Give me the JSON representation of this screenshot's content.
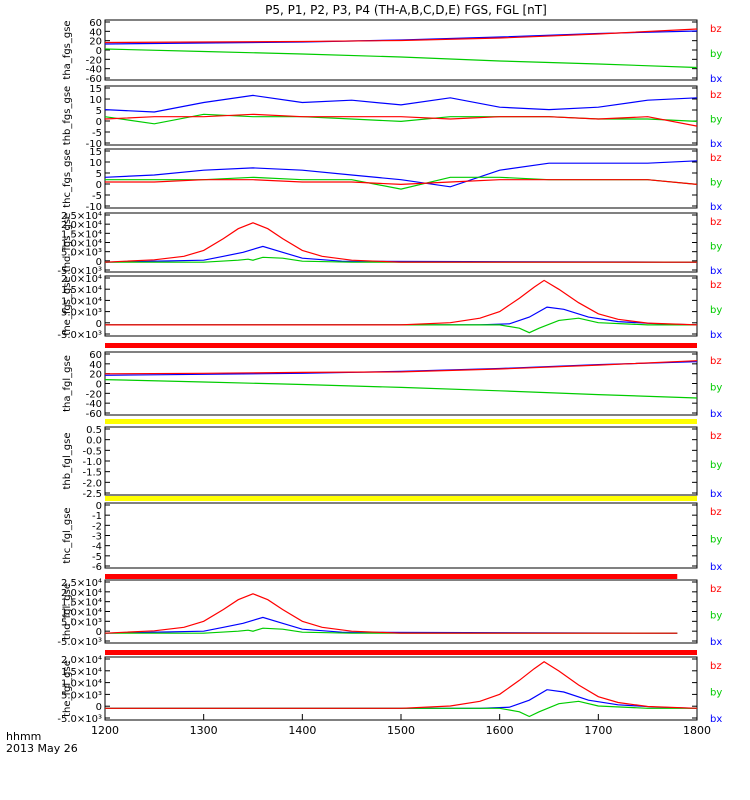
{
  "page": {
    "title": "P5, P1, P2, P3, P4 (TH-A,B,C,D,E) FGS, FGL [nT]",
    "time_label": "hhmm",
    "date_label": "2013 May 26"
  },
  "chart_data": {
    "type": "line",
    "title": "P5, P1, P2, P3, P4 (TH-A,B,C,D,E) FGS, FGL [nT]",
    "xlabel": "hhmm",
    "x_ticks": [
      "1200",
      "1300",
      "1400",
      "1500",
      "1600",
      "1700",
      "1800"
    ],
    "xlim": [
      1200,
      1800
    ],
    "colors": {
      "bx": "#0000ff",
      "by": "#00cc00",
      "bz": "#ff0000",
      "bar_red": "#ff0000",
      "bar_yellow": "#ffff00",
      "bar_black": "#000000"
    },
    "panels": [
      {
        "ylabel": "tha_fgs_gse",
        "yticks": [
          "60",
          "40",
          "20",
          "0",
          "-20",
          "-40",
          "-60"
        ],
        "ylim": [
          -60,
          60
        ],
        "series": [
          {
            "name": "bz",
            "x": [
              1200,
              1300,
              1400,
              1500,
              1600,
              1700,
              1800
            ],
            "values": [
              15,
              16,
              17,
              19,
              24,
              32,
              42
            ]
          },
          {
            "name": "by",
            "x": [
              1200,
              1300,
              1400,
              1500,
              1600,
              1700,
              1800
            ],
            "values": [
              2,
              -3,
              -8,
              -14,
              -22,
              -28,
              -35
            ]
          },
          {
            "name": "bx",
            "x": [
              1200,
              1300,
              1400,
              1500,
              1600,
              1700,
              1800
            ],
            "values": [
              12,
              14,
              16,
              20,
              26,
              33,
              38
            ]
          }
        ]
      },
      {
        "ylabel": "thb_fgs_gse",
        "yticks": [
          "15",
          "10",
          "5",
          "0",
          "-5",
          "-10"
        ],
        "ylim": [
          -10,
          15
        ],
        "series": [
          {
            "name": "bz",
            "x": [
              1200,
              1250,
              1300,
              1350,
              1400,
              1450,
              1500,
              1550,
              1600,
              1650,
              1700,
              1750,
              1800
            ],
            "values": [
              1,
              2,
              2,
              3,
              2,
              2,
              2,
              1,
              2,
              2,
              1,
              2,
              -2
            ]
          },
          {
            "name": "by",
            "x": [
              1200,
              1250,
              1300,
              1350,
              1400,
              1450,
              1500,
              1550,
              1600,
              1650,
              1700,
              1750,
              1800
            ],
            "values": [
              2,
              -1,
              3,
              2,
              2,
              1,
              0,
              2,
              2,
              2,
              1,
              1,
              0
            ]
          },
          {
            "name": "bx",
            "x": [
              1200,
              1250,
              1300,
              1350,
              1400,
              1450,
              1500,
              1550,
              1600,
              1650,
              1700,
              1750,
              1800
            ],
            "values": [
              5,
              4,
              8,
              11,
              8,
              9,
              7,
              10,
              6,
              5,
              6,
              9,
              10
            ]
          }
        ]
      },
      {
        "ylabel": "thc_fgs_gse",
        "yticks": [
          "15",
          "10",
          "5",
          "0",
          "-5",
          "-10"
        ],
        "ylim": [
          -10,
          15
        ],
        "series": [
          {
            "name": "bz",
            "x": [
              1200,
              1250,
              1300,
              1350,
              1400,
              1450,
              1500,
              1550,
              1600,
              1650,
              1700,
              1750,
              1800
            ],
            "values": [
              1,
              1,
              2,
              2,
              1,
              1,
              0,
              1,
              2,
              2,
              2,
              2,
              0
            ]
          },
          {
            "name": "by",
            "x": [
              1200,
              1250,
              1300,
              1350,
              1400,
              1450,
              1500,
              1550,
              1600,
              1650,
              1700,
              1750,
              1800
            ],
            "values": [
              2,
              2,
              2,
              3,
              2,
              2,
              -2,
              3,
              3,
              2,
              2,
              2,
              0
            ]
          },
          {
            "name": "bx",
            "x": [
              1200,
              1250,
              1300,
              1350,
              1400,
              1450,
              1500,
              1550,
              1600,
              1650,
              1700,
              1750,
              1800
            ],
            "values": [
              3,
              4,
              6,
              7,
              6,
              4,
              2,
              -1,
              6,
              9,
              9,
              9,
              10
            ]
          }
        ]
      },
      {
        "ylabel": "thd_fgs_gse",
        "yticks": [
          "2.5×10⁴",
          "2.0×10⁴",
          "1.5×10⁴",
          "1.0×10⁴",
          "5.0×10³",
          "0",
          "-5.0×10³"
        ],
        "ylim": [
          -5000,
          25000
        ],
        "series": [
          {
            "name": "bz",
            "x": [
              1200,
              1250,
              1280,
              1300,
              1320,
              1335,
              1350,
              1365,
              1380,
              1400,
              1420,
              1450,
              1500,
              1800
            ],
            "values": [
              0,
              1200,
              3000,
              6000,
              12000,
              17000,
              20000,
              17000,
              12000,
              6000,
              3000,
              1000,
              0,
              0
            ]
          },
          {
            "name": "by",
            "x": [
              1200,
              1300,
              1335,
              1345,
              1350,
              1360,
              1380,
              1400,
              1450,
              1800
            ],
            "values": [
              0,
              0,
              1000,
              1500,
              1000,
              2500,
              2000,
              500,
              0,
              0
            ]
          },
          {
            "name": "bx",
            "x": [
              1200,
              1300,
              1320,
              1340,
              1360,
              1380,
              1400,
              1440,
              1800
            ],
            "values": [
              0,
              1000,
              3000,
              5000,
              8000,
              5000,
              2000,
              500,
              0
            ]
          }
        ]
      },
      {
        "ylabel": "the_fgs_gse",
        "yticks": [
          "2.0×10⁴",
          "1.5×10⁴",
          "1.0×10⁴",
          "5.0×10³",
          "0",
          "-5.0×10³"
        ],
        "ylim": [
          -5000,
          22000
        ],
        "series": [
          {
            "name": "bz",
            "x": [
              1200,
              1500,
              1550,
              1580,
              1600,
              1620,
              1635,
              1645,
              1660,
              1680,
              1700,
              1720,
              1750,
              1800
            ],
            "values": [
              0,
              0,
              1000,
              3000,
              6000,
              12000,
              17000,
              20000,
              16000,
              10000,
              5000,
              2500,
              800,
              0
            ]
          },
          {
            "name": "by",
            "x": [
              1200,
              1500,
              1600,
              1620,
              1630,
              1640,
              1660,
              1680,
              1700,
              1750,
              1800
            ],
            "values": [
              0,
              0,
              0,
              -1500,
              -3500,
              -1500,
              2000,
              3000,
              1000,
              0,
              0
            ]
          },
          {
            "name": "bx",
            "x": [
              1200,
              1500,
              1580,
              1610,
              1630,
              1648,
              1665,
              1690,
              1720,
              1760,
              1800
            ],
            "values": [
              0,
              0,
              0,
              500,
              3500,
              8000,
              7000,
              3500,
              1500,
              500,
              0
            ]
          }
        ]
      },
      {
        "ylabel": "tha_fgl_gse",
        "yticks": [
          "60",
          "40",
          "20",
          "0",
          "-20",
          "-40",
          "-60"
        ],
        "ylim": [
          -70,
          60
        ],
        "series": [
          {
            "name": "bz",
            "x": [
              1200,
              1300,
              1400,
              1500,
              1600,
              1700,
              1800
            ],
            "values": [
              15,
              16,
              18,
              19,
              25,
              33,
              42
            ]
          },
          {
            "name": "by",
            "x": [
              1200,
              1300,
              1400,
              1500,
              1600,
              1700,
              1800
            ],
            "values": [
              3,
              -2,
              -7,
              -13,
              -20,
              -28,
              -35
            ]
          },
          {
            "name": "bx",
            "x": [
              1200,
              1300,
              1400,
              1500,
              1600,
              1700,
              1800
            ],
            "values": [
              12,
              14,
              16,
              20,
              26,
              34,
              40
            ]
          }
        ]
      },
      {
        "ylabel": "thb_fgl_gse",
        "yticks": [
          "0.5",
          "0.0",
          "-0.5",
          "-1.0",
          "-1.5",
          "-2.0",
          "-2.5"
        ],
        "ylim": [
          -3,
          0.7
        ],
        "series": []
      },
      {
        "ylabel": "thc_fgl_gse",
        "yticks": [
          "0",
          "-1",
          "-2",
          "-3",
          "-4",
          "-5",
          "-6"
        ],
        "ylim": [
          -6.3,
          0.3
        ],
        "series": []
      },
      {
        "ylabel": "thd_fgl_gse",
        "yticks": [
          "2.5×10⁴",
          "2.0×10⁴",
          "1.5×10⁴",
          "1.0×10⁴",
          "5.0×10³",
          "0",
          "-5.0×10³"
        ],
        "ylim": [
          -5000,
          27000
        ],
        "series": [
          {
            "name": "bz",
            "x": [
              1200,
              1250,
              1280,
              1300,
              1320,
              1335,
              1350,
              1365,
              1380,
              1400,
              1420,
              1450,
              1500,
              1780
            ],
            "values": [
              0,
              1200,
              3000,
              6000,
              12000,
              17000,
              20000,
              17000,
              12000,
              6000,
              3000,
              1000,
              0,
              0
            ]
          },
          {
            "name": "by",
            "x": [
              1200,
              1300,
              1335,
              1345,
              1350,
              1360,
              1380,
              1400,
              1450,
              1780
            ],
            "values": [
              0,
              0,
              1000,
              1500,
              1000,
              2500,
              2000,
              500,
              0,
              0
            ]
          },
          {
            "name": "bx",
            "x": [
              1200,
              1300,
              1320,
              1340,
              1360,
              1380,
              1400,
              1440,
              1780
            ],
            "values": [
              0,
              1000,
              3000,
              5000,
              8000,
              5000,
              2000,
              500,
              0
            ]
          }
        ]
      },
      {
        "ylabel": "the_fgl_gse",
        "yticks": [
          "2.0×10⁴",
          "1.5×10⁴",
          "1.0×10⁴",
          "5.0×10³",
          "0",
          "-5.0×10³"
        ],
        "ylim": [
          -5000,
          22000
        ],
        "series": [
          {
            "name": "bz",
            "x": [
              1200,
              1500,
              1550,
              1580,
              1600,
              1620,
              1635,
              1645,
              1660,
              1680,
              1700,
              1720,
              1750,
              1800
            ],
            "values": [
              0,
              0,
              1000,
              3000,
              6000,
              12000,
              17000,
              20000,
              16000,
              10000,
              5000,
              2500,
              800,
              0
            ]
          },
          {
            "name": "by",
            "x": [
              1200,
              1500,
              1600,
              1620,
              1630,
              1640,
              1660,
              1680,
              1700,
              1750,
              1800
            ],
            "values": [
              0,
              0,
              0,
              -1500,
              -3500,
              -1500,
              2000,
              3000,
              1000,
              0,
              0
            ]
          },
          {
            "name": "bx",
            "x": [
              1200,
              1500,
              1580,
              1610,
              1630,
              1648,
              1665,
              1690,
              1720,
              1760,
              1800
            ],
            "values": [
              0,
              0,
              0,
              500,
              3500,
              8000,
              7000,
              3500,
              1500,
              500,
              0
            ]
          }
        ]
      }
    ],
    "flag_bars": [
      {
        "color": "bar_red",
        "segments": [
          [
            1200,
            1800
          ]
        ]
      },
      {
        "color": "bar_yellow",
        "segments": [
          [
            1200,
            1800
          ]
        ]
      },
      {
        "color": "bar_yellow",
        "segments": [
          [
            1200,
            1800
          ]
        ]
      },
      {
        "color": "bar_red",
        "segments": [
          [
            1200,
            1780
          ]
        ]
      },
      {
        "color": "bar_red",
        "segments": [
          [
            1200,
            1800
          ]
        ]
      }
    ]
  }
}
